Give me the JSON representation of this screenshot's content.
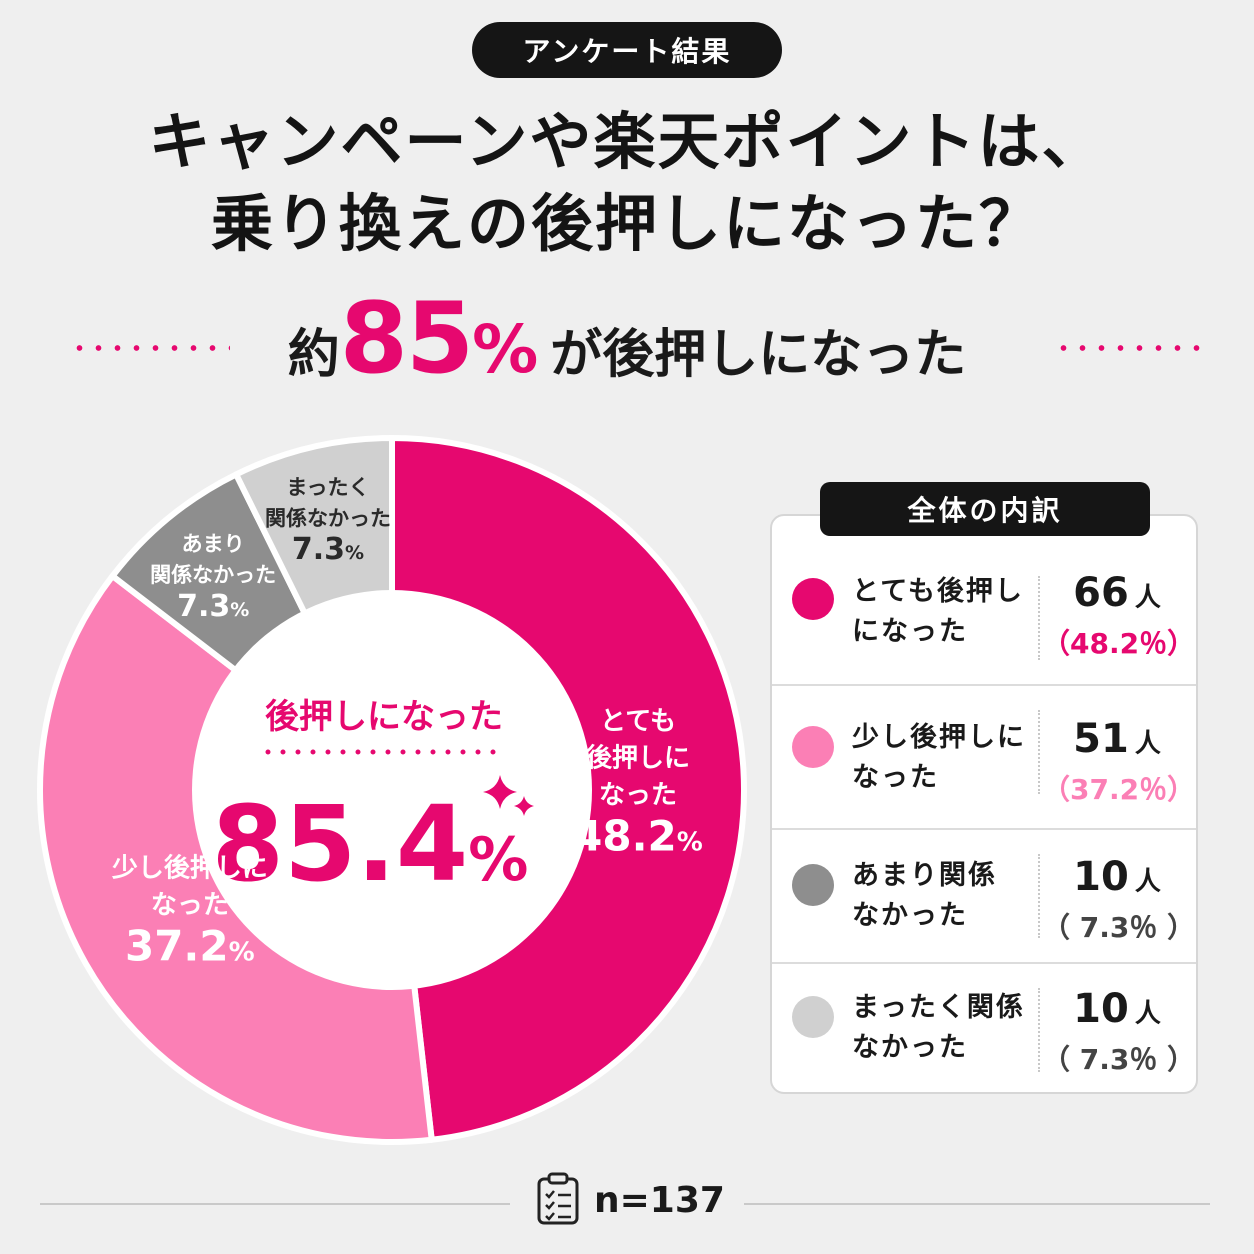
{
  "badge": "アンケート結果",
  "title_line1": "キャンペーンや楽天ポイントは、",
  "title_line2": "乗り換えの後押しになった？",
  "headline": {
    "prefix": "約",
    "number": "85",
    "unit": "%",
    "suffix": "が後押しになった"
  },
  "accent_color": "#e6086f",
  "center": {
    "label": "後押しになった",
    "value": "85.4",
    "unit": "%"
  },
  "breakdown_title": "全体の内訳",
  "sample": "n=137",
  "chart_data": {
    "type": "pie",
    "title": "キャンペーンや楽天ポイントは、乗り換えの後押しになった？",
    "donut": true,
    "categories": [
      "とても後押しになった",
      "少し後押しになった",
      "あまり関係なかった",
      "まったく関係なかった"
    ],
    "values": [
      48.2,
      37.2,
      7.3,
      7.3
    ],
    "counts": [
      66,
      51,
      10,
      10
    ],
    "colors": [
      "#e6086f",
      "#fb7fb5",
      "#8e8e8e",
      "#d0d0d0"
    ],
    "slice_labels": [
      {
        "lines": [
          "とても",
          "後押しに",
          "なった"
        ],
        "pct": "48.2",
        "color": "#ffffff"
      },
      {
        "lines": [
          "少し後押しに",
          "なった"
        ],
        "pct": "37.2",
        "color": "#ffffff"
      },
      {
        "lines": [
          "あまり",
          "関係なかった"
        ],
        "pct": "7.3",
        "color": "#ffffff"
      },
      {
        "lines": [
          "まったく",
          "関係なかった"
        ],
        "pct": "7.3",
        "color": "#2a2a2a"
      }
    ],
    "legend": [
      {
        "label_l1": "とても後押し",
        "label_l2": "になった",
        "count": "66",
        "unit": "人",
        "pct": "（48.2％）",
        "color": "#e6086f",
        "pct_color": "#e6086f"
      },
      {
        "label_l1": "少し後押しに",
        "label_l2": "なった",
        "count": "51",
        "unit": "人",
        "pct": "（37.2％）",
        "color": "#fb7fb5",
        "pct_color": "#fb7fb5"
      },
      {
        "label_l1": "あまり関係",
        "label_l2": "なかった",
        "count": "10",
        "unit": "人",
        "pct": "（ 7.3％ ）",
        "color": "#8e8e8e",
        "pct_color": "#444444"
      },
      {
        "label_l1": "まったく関係",
        "label_l2": "なかった",
        "count": "10",
        "unit": "人",
        "pct": "（ 7.3％ ）",
        "color": "#d0d0d0",
        "pct_color": "#444444"
      }
    ]
  }
}
